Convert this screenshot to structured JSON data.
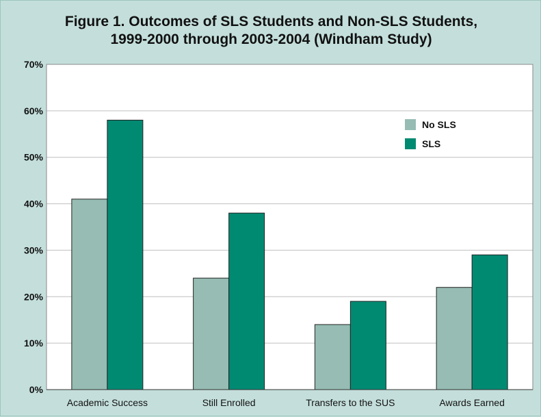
{
  "chart_data": {
    "type": "bar",
    "title": "Figure 1. Outcomes of SLS Students and Non-SLS Students,",
    "subtitle": "1999-2000 through 2003-2004 (Windham Study)",
    "categories": [
      "Academic Success",
      "Still Enrolled",
      "Transfers to the SUS",
      "Awards Earned"
    ],
    "series": [
      {
        "name": "No SLS",
        "color": "#96bcb3",
        "values": [
          41,
          24,
          14,
          22
        ]
      },
      {
        "name": "SLS",
        "color": "#008a72",
        "values": [
          58,
          38,
          19,
          29
        ]
      }
    ],
    "yticks": [
      "0%",
      "10%",
      "20%",
      "30%",
      "40%",
      "50%",
      "60%",
      "70%"
    ],
    "ylim": [
      0,
      70
    ],
    "grid": true,
    "legend_position": "top-right",
    "colors": {
      "background": "#c4dfdb",
      "plot_area": "#ffffff"
    }
  }
}
